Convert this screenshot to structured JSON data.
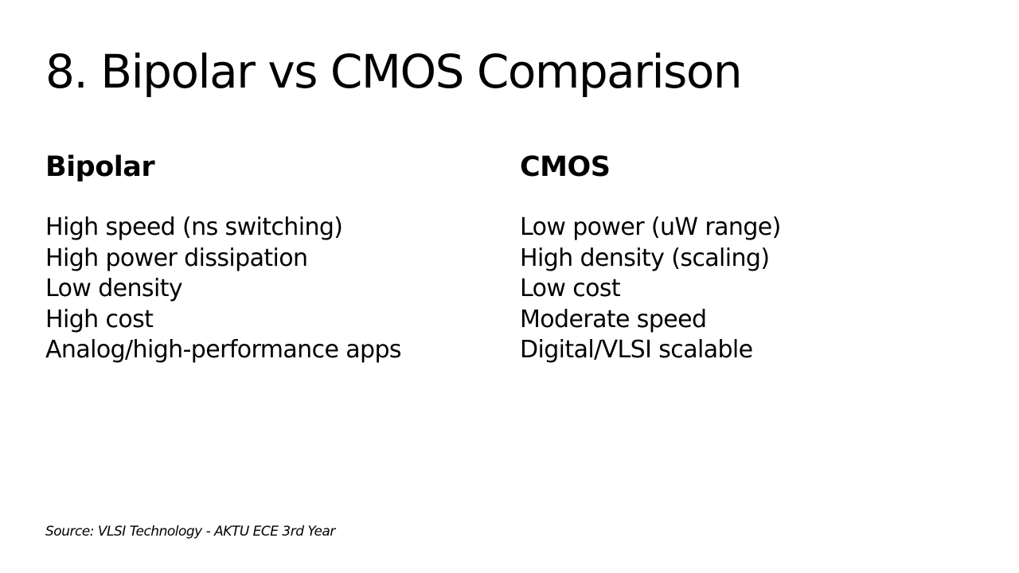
{
  "slide": {
    "title": "8. Bipolar vs CMOS Comparison",
    "columns": [
      {
        "heading": "Bipolar",
        "items": [
          "High speed (ns switching)",
          "High power dissipation",
          "Low density",
          "High cost",
          "Analog/high-performance apps"
        ]
      },
      {
        "heading": "CMOS",
        "items": [
          "Low power (uW range)",
          "High density (scaling)",
          "Low cost",
          "Moderate speed",
          "Digital/VLSI scalable"
        ]
      }
    ],
    "source": "Source: VLSI Technology - AKTU ECE 3rd Year"
  },
  "colors": {
    "background": "#ffffff",
    "text": "#000000"
  }
}
